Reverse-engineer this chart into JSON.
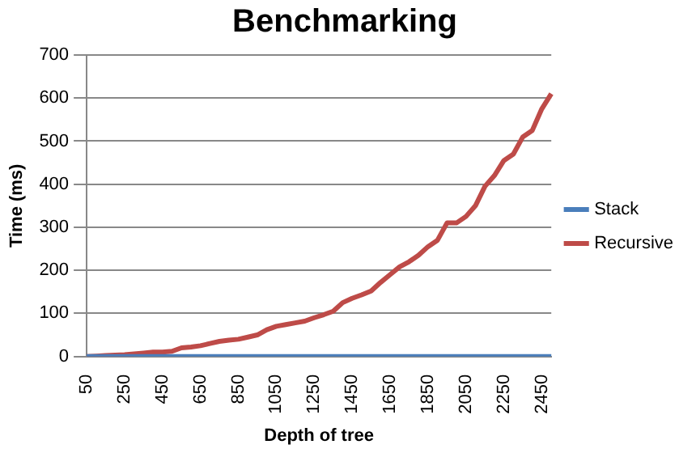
{
  "chart_data": {
    "type": "line",
    "title": "Benchmarking",
    "xlabel": "Depth of tree",
    "ylabel": "Time (ms)",
    "categories": [
      "50",
      null,
      null,
      null,
      "250",
      null,
      null,
      null,
      "450",
      null,
      null,
      null,
      "650",
      null,
      null,
      null,
      "850",
      null,
      null,
      null,
      "1050",
      null,
      null,
      null,
      "1250",
      null,
      null,
      null,
      "1450",
      null,
      null,
      null,
      "1650",
      null,
      null,
      null,
      "1850",
      null,
      null,
      null,
      "2050",
      null,
      null,
      null,
      "2250",
      null,
      null,
      null,
      "2450",
      null
    ],
    "series": [
      {
        "name": "Stack",
        "color": "#4a7ebb",
        "values": [
          0,
          0,
          0,
          0,
          0,
          0,
          0,
          0,
          0,
          0,
          0,
          0,
          0,
          0,
          0,
          0,
          0,
          0,
          0,
          0,
          0,
          0,
          0,
          0,
          0,
          0,
          0,
          0,
          0,
          0,
          0,
          0,
          0,
          0,
          0,
          0,
          0,
          0,
          0,
          0,
          0,
          0,
          0,
          0,
          0,
          0,
          0,
          0,
          0,
          0
        ]
      },
      {
        "name": "Recursive",
        "color": "#be4b48",
        "values": [
          0,
          1,
          2,
          3,
          4,
          6,
          8,
          10,
          10,
          12,
          20,
          22,
          25,
          30,
          35,
          38,
          40,
          45,
          50,
          62,
          70,
          74,
          78,
          82,
          90,
          97,
          105,
          125,
          135,
          143,
          152,
          172,
          190,
          208,
          220,
          235,
          255,
          270,
          310,
          310,
          325,
          350,
          395,
          420,
          455,
          470,
          510,
          525,
          575,
          610
        ]
      }
    ],
    "ylim": [
      0,
      700
    ],
    "yticks": [
      0,
      100,
      200,
      300,
      400,
      500,
      600,
      700
    ],
    "grid": "y",
    "legend": "right",
    "marker": "none",
    "line_style": "solid"
  }
}
